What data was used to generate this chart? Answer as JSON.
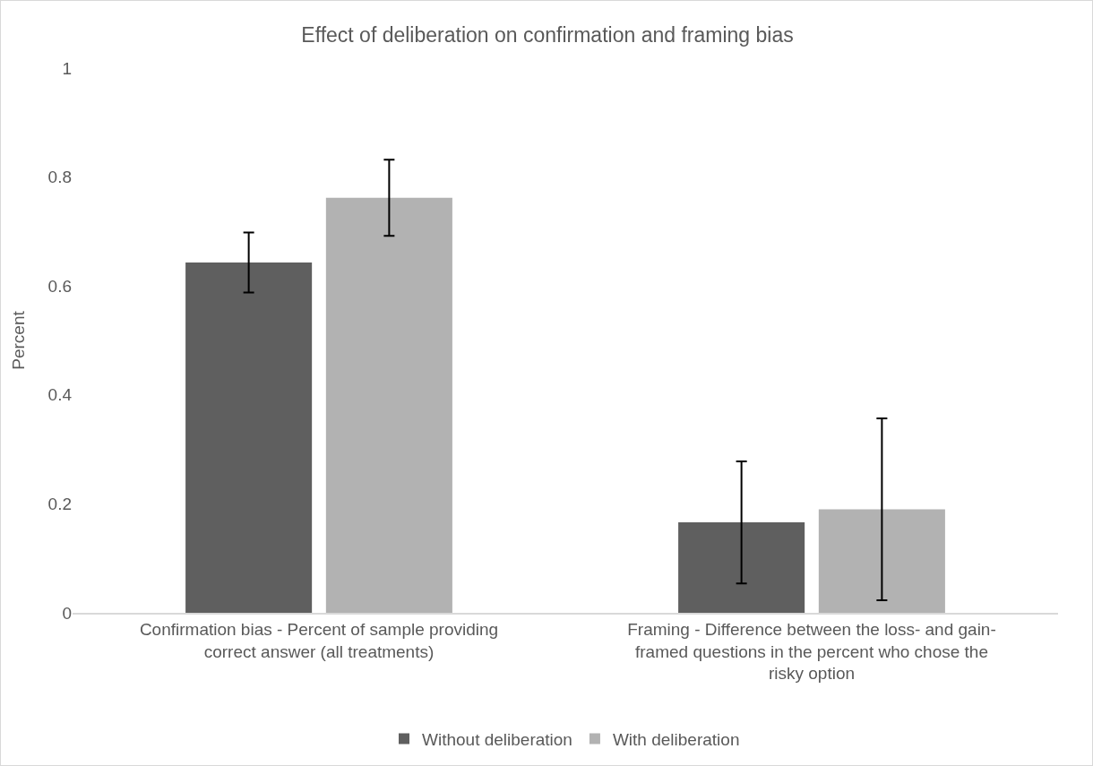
{
  "chart_data": {
    "type": "bar",
    "title": "Effect of deliberation on confirmation and framing bias",
    "ylabel": "Percent",
    "categories": [
      "Confirmation bias - Percent of sample providing correct answer (all treatments)",
      "Framing - Difference between the loss- and gain-framed questions in the percent who chose the risky option"
    ],
    "series": [
      {
        "name": "Without deliberation",
        "color": "#5f5f5f",
        "values": [
          0.643,
          0.166
        ],
        "errors": [
          0.055,
          0.112
        ]
      },
      {
        "name": "With deliberation",
        "color": "#b2b2b2",
        "values": [
          0.762,
          0.19
        ],
        "errors": [
          0.07,
          0.167
        ]
      }
    ],
    "ylim": [
      0,
      1
    ],
    "yticks": [
      0,
      0.2,
      0.4,
      0.6,
      0.8,
      1
    ],
    "grid": false,
    "legend": "bottom"
  }
}
